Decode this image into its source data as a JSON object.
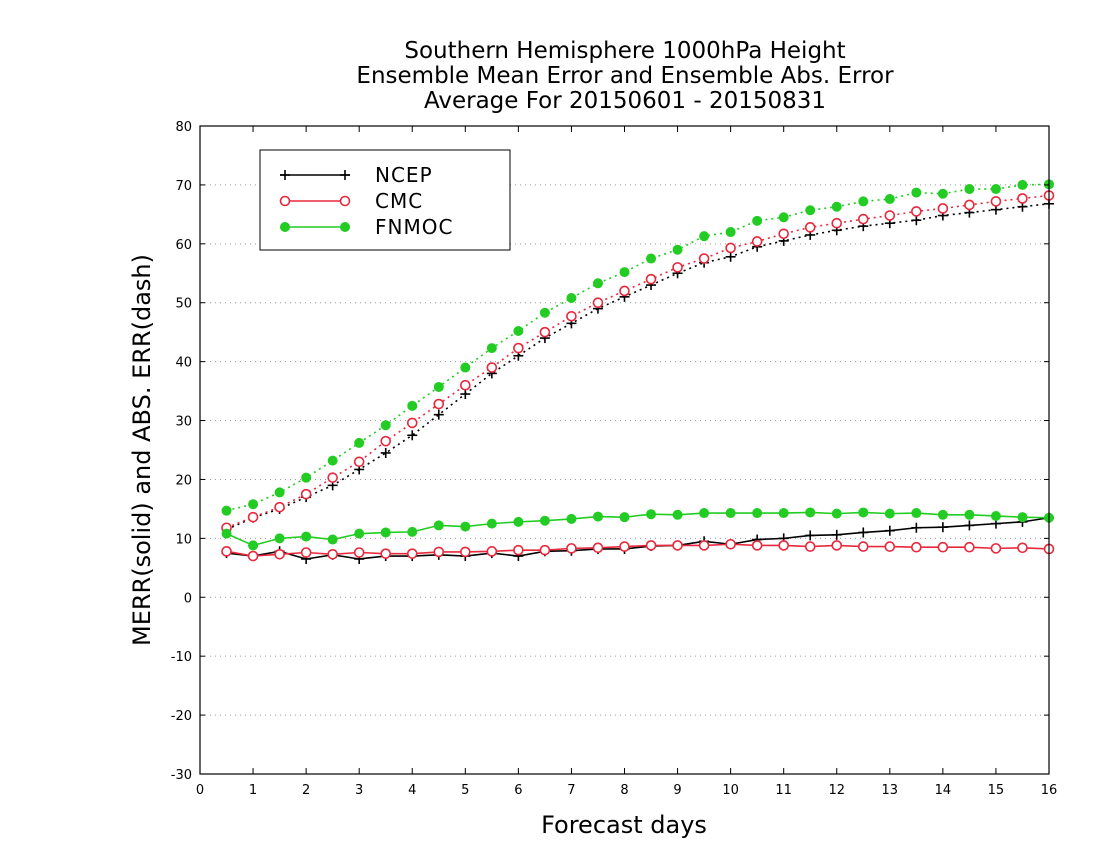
{
  "chart_data": {
    "type": "line",
    "title": [
      "Southern Hemisphere 1000hPa Height",
      "Ensemble Mean Error and Ensemble Abs. Error",
      "Average For 20150601 - 20150831"
    ],
    "xlabel": "Forecast days",
    "ylabel": "MERR(solid) and ABS. ERR(dash)",
    "xlim": [
      0,
      16
    ],
    "ylim": [
      -30,
      80
    ],
    "xticks": [
      0,
      1,
      2,
      3,
      4,
      5,
      6,
      7,
      8,
      9,
      10,
      11,
      12,
      13,
      14,
      15,
      16
    ],
    "yticks": [
      -30,
      -20,
      -10,
      0,
      10,
      20,
      30,
      40,
      50,
      60,
      70,
      80
    ],
    "grid": "horizontal dotted",
    "legend_position": "top-left",
    "x": [
      0.5,
      1,
      1.5,
      2,
      2.5,
      3,
      3.5,
      4,
      4.5,
      5,
      5.5,
      6,
      6.5,
      7,
      7.5,
      8,
      8.5,
      9,
      9.5,
      10,
      10.5,
      11,
      11.5,
      12,
      12.5,
      13,
      13.5,
      14,
      14.5,
      15,
      15.5,
      16
    ],
    "series": [
      {
        "name": "NCEP",
        "color": "#000000",
        "marker": "plus",
        "merr": [
          7.5,
          7.0,
          7.8,
          6.5,
          7.2,
          6.5,
          7.0,
          7.0,
          7.2,
          7.0,
          7.5,
          7.0,
          7.8,
          7.9,
          8.2,
          8.2,
          8.7,
          8.8,
          9.5,
          9.0,
          9.8,
          10.0,
          10.5,
          10.6,
          11.0,
          11.3,
          11.8,
          11.9,
          12.2,
          12.5,
          12.8,
          13.5
        ],
        "abs_err": [
          11.5,
          13.5,
          15.0,
          17.0,
          19.0,
          21.7,
          24.5,
          27.5,
          31.0,
          34.5,
          38.0,
          41.0,
          44.0,
          46.5,
          49.0,
          51.0,
          53.0,
          55.0,
          56.8,
          57.8,
          59.5,
          60.5,
          61.5,
          62.3,
          63.0,
          63.5,
          64.0,
          64.8,
          65.3,
          65.8,
          66.3,
          66.8
        ]
      },
      {
        "name": "CMC",
        "color": "#e8283c",
        "marker": "open-circle",
        "merr": [
          7.8,
          7.0,
          7.3,
          7.6,
          7.3,
          7.6,
          7.4,
          7.4,
          7.7,
          7.7,
          7.8,
          8.0,
          8.0,
          8.3,
          8.4,
          8.6,
          8.8,
          8.8,
          8.8,
          9.0,
          8.8,
          8.8,
          8.6,
          8.8,
          8.6,
          8.6,
          8.5,
          8.5,
          8.5,
          8.3,
          8.4,
          8.2
        ],
        "abs_err": [
          11.8,
          13.6,
          15.3,
          17.5,
          20.3,
          23.0,
          26.5,
          29.6,
          32.8,
          36.0,
          39.0,
          42.3,
          45.0,
          47.7,
          50.0,
          52.0,
          54.0,
          56.0,
          57.5,
          59.3,
          60.4,
          61.7,
          62.8,
          63.5,
          64.2,
          64.8,
          65.5,
          66.0,
          66.6,
          67.2,
          67.7,
          68.2
        ]
      },
      {
        "name": "FNMOC",
        "color": "#22cc22",
        "marker": "filled-circle",
        "merr": [
          10.8,
          8.8,
          10.0,
          10.3,
          9.8,
          10.8,
          11.0,
          11.1,
          12.2,
          12.0,
          12.5,
          12.8,
          13.0,
          13.3,
          13.7,
          13.6,
          14.1,
          14.0,
          14.3,
          14.3,
          14.3,
          14.3,
          14.4,
          14.2,
          14.4,
          14.2,
          14.3,
          14.0,
          14.0,
          13.8,
          13.6,
          13.5
        ],
        "abs_err": [
          14.7,
          15.8,
          17.8,
          20.3,
          23.2,
          26.2,
          29.2,
          32.5,
          35.7,
          39.0,
          42.3,
          45.2,
          48.3,
          50.8,
          53.3,
          55.2,
          57.5,
          59.0,
          61.3,
          62.0,
          63.9,
          64.5,
          65.7,
          66.3,
          67.2,
          67.6,
          68.7,
          68.5,
          69.3,
          69.3,
          70.0,
          70.1
        ]
      }
    ]
  }
}
